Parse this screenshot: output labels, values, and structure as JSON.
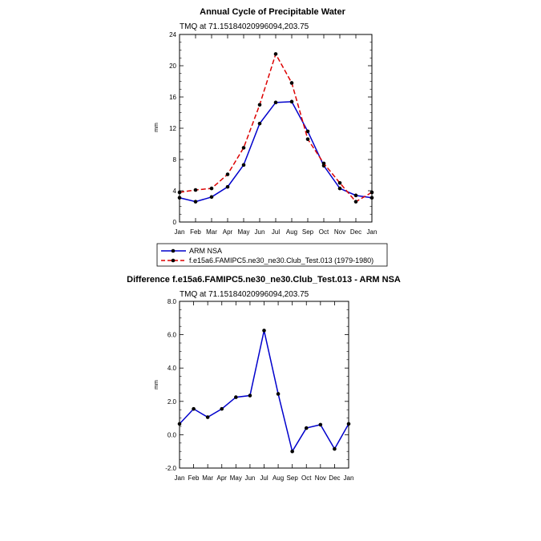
{
  "colors": {
    "obs": "#0000cc",
    "model": "#dd0000",
    "marker": "#000000",
    "diff": "#0000cc"
  },
  "chart_data": [
    {
      "type": "line",
      "title": "Annual Cycle of Precipitable Water",
      "subtitle": "TMQ at 71.15184020996094,203.75",
      "ylabel": "mm",
      "ylim": [
        0,
        24
      ],
      "yticks": [
        "0",
        "4",
        "8",
        "12",
        "16",
        "20",
        "24"
      ],
      "categories": [
        "Jan",
        "Feb",
        "Mar",
        "Apr",
        "May",
        "Jun",
        "Jul",
        "Aug",
        "Sep",
        "Oct",
        "Nov",
        "Dec",
        "Jan"
      ],
      "legend_position": "bottom",
      "series": [
        {
          "name": "ARM NSA",
          "style": "solid",
          "values": [
            3.1,
            2.6,
            3.2,
            4.5,
            7.3,
            12.6,
            15.3,
            15.4,
            11.6,
            7.2,
            4.3,
            3.4,
            3.1
          ]
        },
        {
          "name": "f.e15a6.FAMIPC5.ne30_ne30.Club_Test.013 (1979-1980)",
          "style": "dashed",
          "values": [
            3.8,
            4.1,
            4.3,
            6.1,
            9.5,
            15.0,
            21.5,
            17.8,
            10.6,
            7.5,
            5.0,
            2.6,
            3.8
          ]
        }
      ]
    },
    {
      "type": "line",
      "title": "Difference f.e15a6.FAMIPC5.ne30_ne30.Club_Test.013 - ARM NSA",
      "subtitle": "TMQ at 71.15184020996094,203.75",
      "ylabel": "mm",
      "ylim": [
        -2,
        8
      ],
      "yticks": [
        "-2.0",
        "0.0",
        "2.0",
        "4.0",
        "6.0",
        "8.0"
      ],
      "categories": [
        "Jan",
        "Feb",
        "Mar",
        "Apr",
        "May",
        "Jun",
        "Jul",
        "Aug",
        "Sep",
        "Oct",
        "Nov",
        "Dec",
        "Jan"
      ],
      "series": [
        {
          "values": [
            0.65,
            1.55,
            1.05,
            1.55,
            2.25,
            2.35,
            6.25,
            2.45,
            -1.0,
            0.4,
            0.6,
            -0.85,
            0.65
          ]
        }
      ]
    }
  ]
}
